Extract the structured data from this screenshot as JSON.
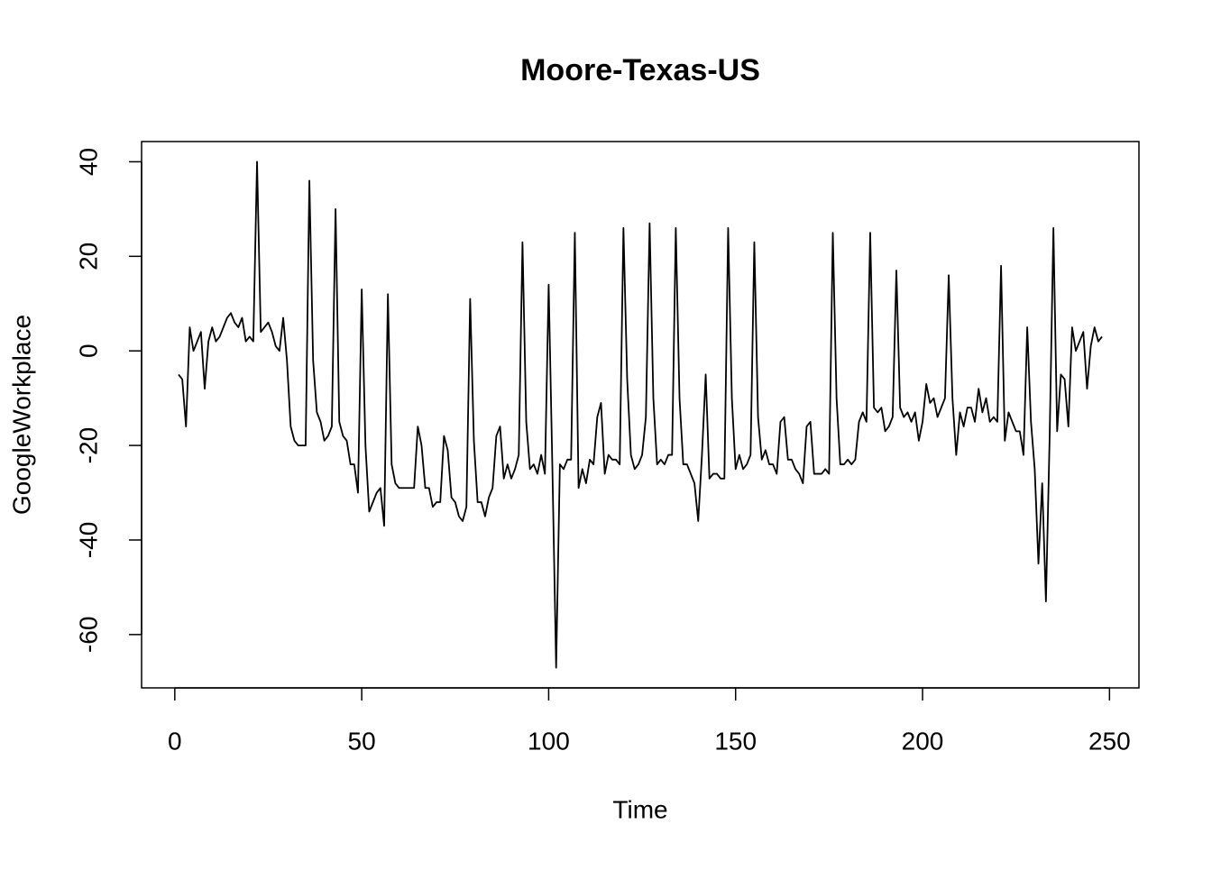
{
  "chart_data": {
    "type": "line",
    "title": "Moore-Texas-US",
    "x_label": "Time",
    "y_label": "GoogleWorkplace",
    "x": [
      1,
      2,
      3,
      4,
      5,
      6,
      7,
      8,
      9,
      10,
      11,
      12,
      13,
      14,
      15,
      16,
      17,
      18,
      19,
      20,
      21,
      22,
      23,
      24,
      25,
      26,
      27,
      28,
      29,
      30,
      31,
      32,
      33,
      34,
      35,
      36,
      37,
      38,
      39,
      40,
      41,
      42,
      43,
      44,
      45,
      46,
      47,
      48,
      49,
      50,
      51,
      52,
      53,
      54,
      55,
      56,
      57,
      58,
      59,
      60,
      61,
      62,
      63,
      64,
      65,
      66,
      67,
      68,
      69,
      70,
      71,
      72,
      73,
      74,
      75,
      76,
      77,
      78,
      79,
      80,
      81,
      82,
      83,
      84,
      85,
      86,
      87,
      88,
      89,
      90,
      91,
      92,
      93,
      94,
      95,
      96,
      97,
      98,
      99,
      100,
      101,
      102,
      103,
      104,
      105,
      106,
      107,
      108,
      109,
      110,
      111,
      112,
      113,
      114,
      115,
      116,
      117,
      118,
      119,
      120,
      121,
      122,
      123,
      124,
      125,
      126,
      127,
      128,
      129,
      130,
      131,
      132,
      133,
      134,
      135,
      136,
      137,
      138,
      139,
      140,
      141,
      142,
      143,
      144,
      145,
      146,
      147,
      148,
      149,
      150,
      151,
      152,
      153,
      154,
      155,
      156,
      157,
      158,
      159,
      160,
      161,
      162,
      163,
      164,
      165,
      166,
      167,
      168,
      169,
      170,
      171,
      172,
      173,
      174,
      175,
      176,
      177,
      178,
      179,
      180,
      181,
      182,
      183,
      184,
      185,
      186,
      187,
      188,
      189,
      190,
      191,
      192,
      193,
      194,
      195,
      196,
      197,
      198,
      199,
      200,
      201,
      202,
      203,
      204,
      205,
      206,
      207,
      208,
      209,
      210,
      211,
      212,
      213,
      214,
      215,
      216,
      217,
      218,
      219,
      220,
      221,
      222,
      223,
      224,
      225,
      226,
      227,
      228,
      229,
      230,
      231,
      232,
      233,
      234,
      235,
      236,
      237,
      238,
      239,
      240,
      241,
      242,
      243,
      244,
      245,
      246,
      247,
      248
    ],
    "values": [
      -5,
      -6,
      -16,
      5,
      0,
      2,
      4,
      -8,
      2,
      5,
      2,
      3,
      5,
      7,
      8,
      6,
      5,
      7,
      2,
      3,
      2,
      40,
      4,
      5,
      6,
      4,
      1,
      0,
      7,
      -2,
      -16,
      -19,
      -20,
      -20,
      -20,
      36,
      -2,
      -13,
      -15,
      -19,
      -18,
      -16,
      30,
      -15,
      -18,
      -19,
      -24,
      -24,
      -30,
      13,
      -20,
      -34,
      -32,
      -30,
      -29,
      -37,
      12,
      -24,
      -28,
      -29,
      -29,
      -29,
      -29,
      -29,
      -16,
      -20,
      -29,
      -29,
      -33,
      -32,
      -32,
      -18,
      -21,
      -31,
      -32,
      -35,
      -36,
      -33,
      11,
      -19,
      -32,
      -32,
      -35,
      -31,
      -29,
      -18,
      -16,
      -27,
      -24,
      -27,
      -25,
      -22,
      23,
      -15,
      -25,
      -24,
      -26,
      -22,
      -26,
      14,
      -25,
      -67,
      -24,
      -25,
      -23,
      -23,
      25,
      -29,
      -25,
      -28,
      -23,
      -24,
      -14,
      -11,
      -26,
      -22,
      -23,
      -23,
      -24,
      26,
      -6,
      -22,
      -25,
      -24,
      -22,
      -14,
      27,
      -10,
      -24,
      -23,
      -24,
      -22,
      -22,
      26,
      -10,
      -24,
      -24,
      -26,
      -28,
      -36,
      -22,
      -5,
      -27,
      -26,
      -26,
      -27,
      -27,
      26,
      -10,
      -25,
      -22,
      -25,
      -24,
      -22,
      23,
      -14,
      -23,
      -21,
      -24,
      -24,
      -26,
      -15,
      -14,
      -23,
      -23,
      -25,
      -26,
      -28,
      -16,
      -15,
      -26,
      -26,
      -26,
      -25,
      -26,
      25,
      -10,
      -24,
      -24,
      -23,
      -24,
      -23,
      -15,
      -13,
      -15,
      25,
      -12,
      -13,
      -12,
      -17,
      -16,
      -14,
      17,
      -12,
      -14,
      -13,
      -15,
      -13,
      -19,
      -15,
      -7,
      -11,
      -10,
      -14,
      -12,
      -10,
      16,
      -10,
      -22,
      -13,
      -16,
      -12,
      -12,
      -15,
      -8,
      -13,
      -10,
      -15,
      -14,
      -15,
      18,
      -19,
      -13,
      -15,
      -17,
      -17,
      -22,
      5,
      -15,
      -25,
      -45,
      -28,
      -53,
      -18,
      26,
      -17,
      -5,
      -6,
      -16,
      5,
      0,
      2,
      4,
      -8,
      1,
      5,
      2,
      3
    ],
    "color": "#000000",
    "xlim": [
      -8.88,
      257.88
    ],
    "ylim": [
      -71.28,
      44.28
    ],
    "xticks": [
      0,
      50,
      100,
      150,
      200,
      250
    ],
    "yticks": [
      -60,
      -40,
      -20,
      0,
      20,
      40
    ]
  }
}
